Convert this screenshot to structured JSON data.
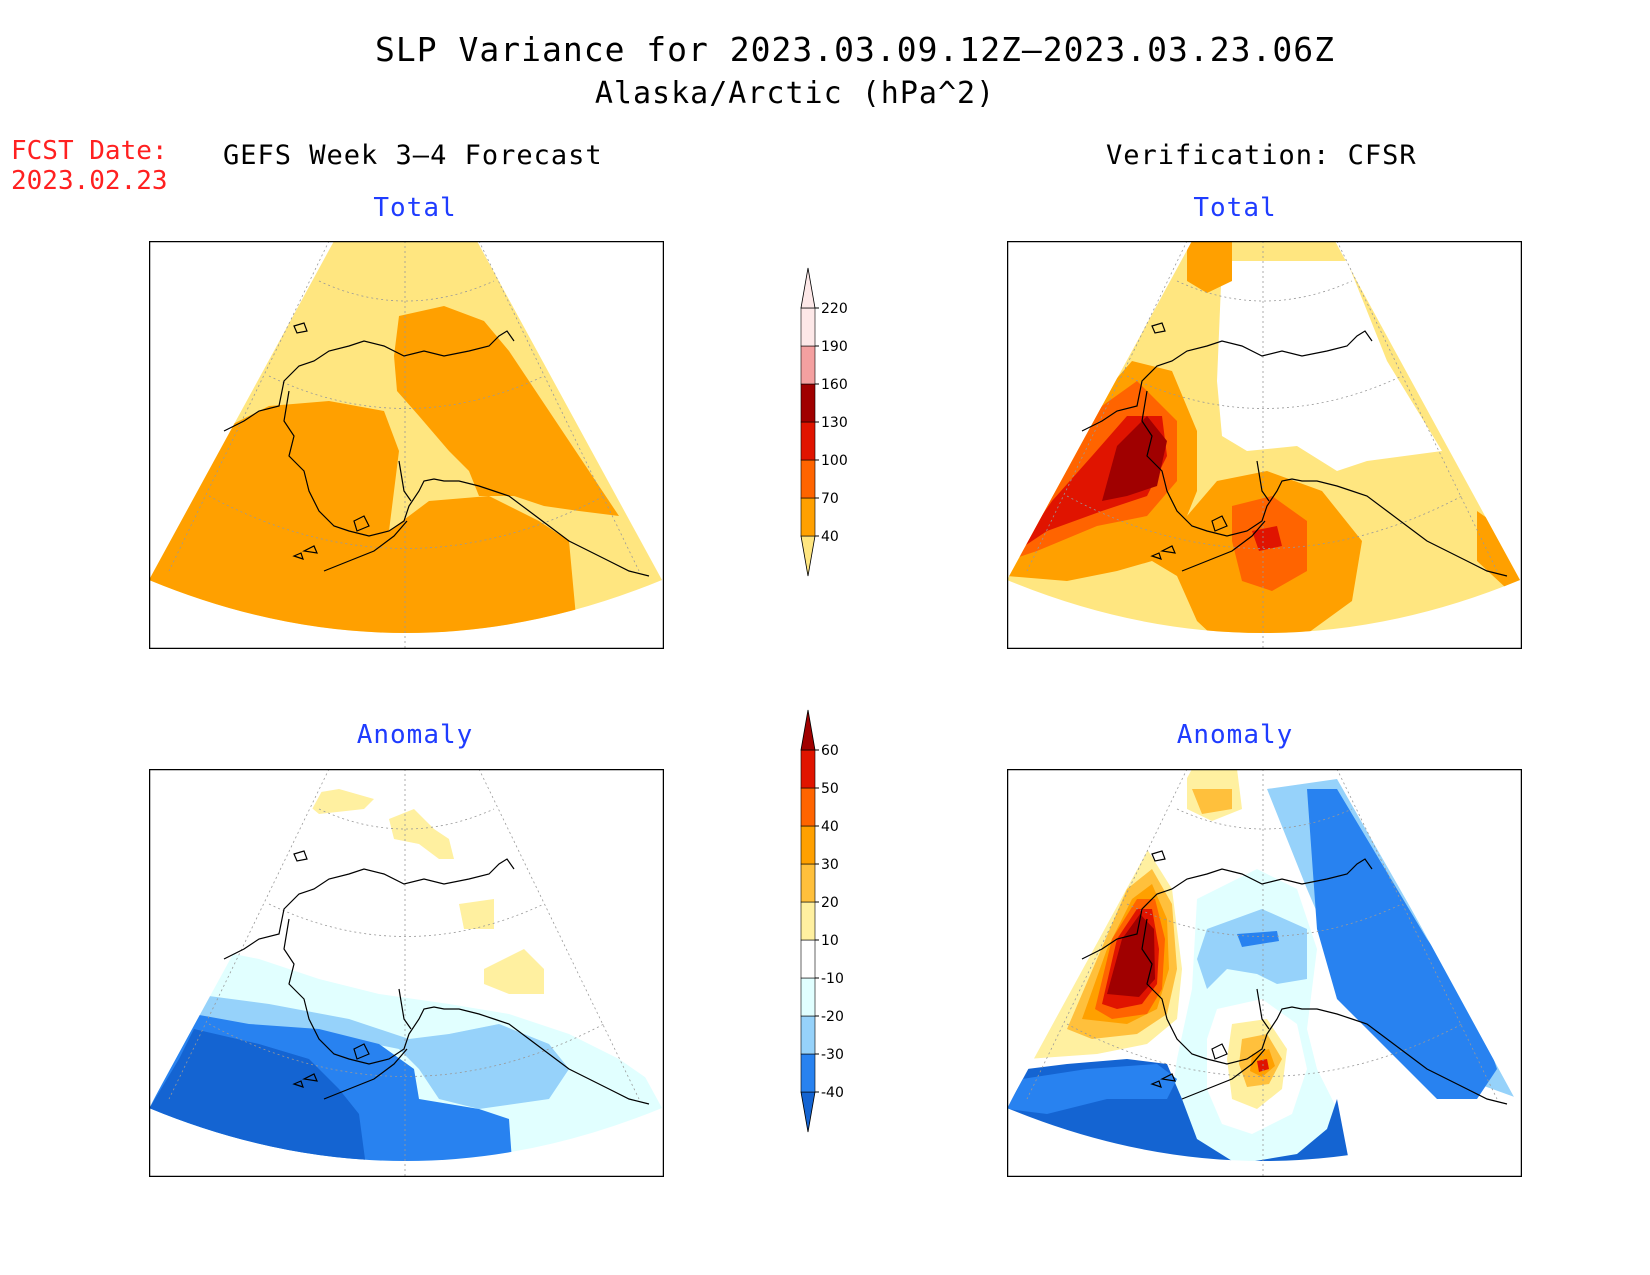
{
  "title": {
    "line1": "SLP Variance for 2023.03.09.12Z–2023.03.23.06Z",
    "line2": "Alaska/Arctic (hPa^2)"
  },
  "forecast_date": {
    "label": "FCST Date:",
    "value": "2023.02.23"
  },
  "columns": {
    "left": "GEFS Week 3–4 Forecast",
    "right": "Verification: CFSR"
  },
  "panels": {
    "top_left_title": "Total",
    "top_right_title": "Total",
    "bottom_left_title": "Anomaly",
    "bottom_right_title": "Anomaly"
  },
  "colorbars": {
    "total": {
      "levels": [
        "40",
        "70",
        "100",
        "130",
        "160",
        "190",
        "220"
      ],
      "colors": [
        "#ffe680",
        "#ffa000",
        "#ff6400",
        "#e01400",
        "#a00000",
        "#f4a0a0",
        "#fde8e8"
      ]
    },
    "anomaly": {
      "levels": [
        "-40",
        "-30",
        "-20",
        "-10",
        "10",
        "20",
        "30",
        "40",
        "50",
        "60"
      ],
      "colors": [
        "#1464d2",
        "#2882f0",
        "#96d2fa",
        "#e1ffff",
        "#ffffff",
        "#fff0a0",
        "#ffc03c",
        "#ffa000",
        "#ff6400",
        "#e01400",
        "#a00000"
      ]
    }
  },
  "chart_data": {
    "type": "heatmap",
    "variable": "SLP Variance",
    "units": "hPa^2",
    "region": "Alaska/Arctic",
    "valid_period": "2023.03.09.12Z–2023.03.23.06Z",
    "panels": [
      {
        "name": "GEFS Week 3–4 Forecast",
        "field": "Total",
        "scale_levels": [
          40,
          70,
          100,
          130,
          160,
          190,
          220
        ]
      },
      {
        "name": "Verification: CFSR",
        "field": "Total",
        "scale_levels": [
          40,
          70,
          100,
          130,
          160,
          190,
          220
        ]
      },
      {
        "name": "GEFS Week 3–4 Forecast",
        "field": "Anomaly",
        "scale_levels": [
          -40,
          -30,
          -20,
          -10,
          10,
          20,
          30,
          40,
          50,
          60
        ]
      },
      {
        "name": "Verification: CFSR",
        "field": "Anomaly",
        "scale_levels": [
          -40,
          -30,
          -20,
          -10,
          10,
          20,
          30,
          40,
          50,
          60
        ]
      }
    ]
  }
}
